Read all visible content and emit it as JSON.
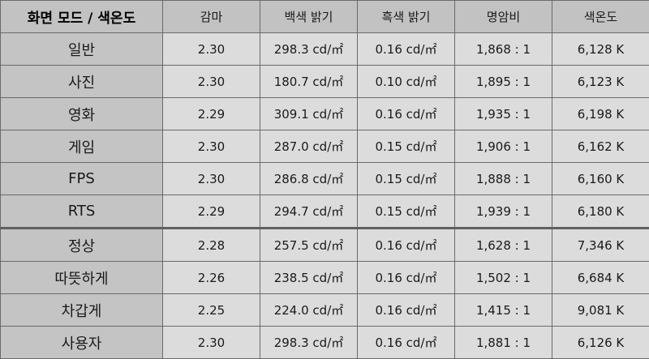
{
  "headers": [
    "화면 모드 / 색온도",
    "감마",
    "백색 밝기",
    "흑색 밝기",
    "명암비",
    "색온도"
  ],
  "rows": [
    {
      "mode": "일반",
      "gamma": "2.30",
      "white": "298.3 cd/㎡",
      "black": "0.16 cd/㎡",
      "contrast": "1,868 : 1",
      "temp": "6,128 K"
    },
    {
      "mode": "사진",
      "gamma": "2.30",
      "white": "180.7 cd/㎡",
      "black": "0.10 cd/㎡",
      "contrast": "1,895 : 1",
      "temp": "6,123 K"
    },
    {
      "mode": "영화",
      "gamma": "2.29",
      "white": "309.1 cd/㎡",
      "black": "0.16 cd/㎡",
      "contrast": "1,935 : 1",
      "temp": "6,198 K"
    },
    {
      "mode": "게임",
      "gamma": "2.30",
      "white": "287.0 cd/㎡",
      "black": "0.15 cd/㎡",
      "contrast": "1,906 : 1",
      "temp": "6,162 K"
    },
    {
      "mode": "FPS",
      "gamma": "2.30",
      "white": "286.8 cd/㎡",
      "black": "0.15 cd/㎡",
      "contrast": "1,888 : 1",
      "temp": "6,160 K"
    },
    {
      "mode": "RTS",
      "gamma": "2.29",
      "white": "294.7 cd/㎡",
      "black": "0.15 cd/㎡",
      "contrast": "1,939 : 1",
      "temp": "6,180 K"
    },
    {
      "mode": "정상",
      "gamma": "2.28",
      "white": "257.5 cd/㎡",
      "black": "0.16 cd/㎡",
      "contrast": "1,628 : 1",
      "temp": "7,346 K"
    },
    {
      "mode": "따뜻하게",
      "gamma": "2.26",
      "white": "238.5 cd/㎡",
      "black": "0.16 cd/㎡",
      "contrast": "1,502 : 1",
      "temp": "6,684 K"
    },
    {
      "mode": "차갑게",
      "gamma": "2.25",
      "white": "224.0 cd/㎡",
      "black": "0.16 cd/㎡",
      "contrast": "1,415 : 1",
      "temp": "9,081 K"
    },
    {
      "mode": "사용자",
      "gamma": "2.30",
      "white": "298.3 cd/㎡",
      "black": "0.16 cd/㎡",
      "contrast": "1,881 : 1",
      "temp": "6,126 K"
    }
  ]
}
